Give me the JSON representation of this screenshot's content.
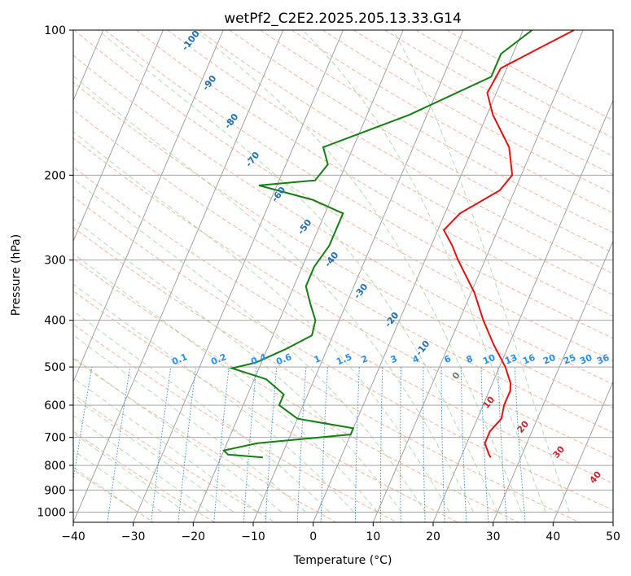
{
  "chart_data": {
    "type": "line",
    "title": "wetPf2_C2E2.2025.205.13.33.G14",
    "xlabel": "Temperature (°C)",
    "ylabel": "Pressure (hPa)",
    "xlim": [
      -40,
      50
    ],
    "ylim": [
      1050,
      100
    ],
    "y_scale": "log",
    "grid": true,
    "x_ticks": [
      -40,
      -30,
      -20,
      -10,
      0,
      10,
      20,
      30,
      40,
      50
    ],
    "y_ticks": [
      100,
      200,
      300,
      400,
      500,
      600,
      700,
      800,
      900,
      1000
    ],
    "skew_t": true,
    "colors": {
      "temperature": "#e8110f",
      "dewpoint": "#118011",
      "dry_adiabat_label": "#1f6fb4",
      "moist_adiabat_label": "#c8262c",
      "mixing_ratio_label": "#2a8fe6",
      "isotherm_grid": "#999999",
      "dry_adiabat": "#f5a182",
      "moist_adiabat": "#8fcf8f",
      "mixing_ratio": "#3f8fdf"
    },
    "series": [
      {
        "role": "temperature",
        "points": [
          [
            100,
            8.5
          ],
          [
            110,
            3.5
          ],
          [
            120,
            -1
          ],
          [
            135,
            -1.5
          ],
          [
            150,
            1
          ],
          [
            175,
            6
          ],
          [
            200,
            8.5
          ],
          [
            215,
            7.5
          ],
          [
            240,
            2.5
          ],
          [
            260,
            1
          ],
          [
            280,
            3.5
          ],
          [
            300,
            5.5
          ],
          [
            350,
            10.5
          ],
          [
            400,
            14
          ],
          [
            450,
            17.5
          ],
          [
            500,
            21
          ],
          [
            540,
            23
          ],
          [
            560,
            23.5
          ],
          [
            600,
            23.5
          ],
          [
            640,
            24
          ],
          [
            680,
            23
          ],
          [
            720,
            23
          ],
          [
            760,
            24.5
          ],
          [
            770,
            25
          ]
        ]
      },
      {
        "role": "dewpoint",
        "points": [
          [
            100,
            1.5
          ],
          [
            112,
            -2
          ],
          [
            125,
            -2
          ],
          [
            150,
            -13
          ],
          [
            175,
            -25
          ],
          [
            190,
            -23
          ],
          [
            205,
            -24
          ],
          [
            210,
            -33
          ],
          [
            225,
            -23
          ],
          [
            240,
            -17
          ],
          [
            280,
            -17
          ],
          [
            310,
            -18
          ],
          [
            340,
            -18
          ],
          [
            370,
            -16
          ],
          [
            400,
            -14
          ],
          [
            430,
            -13.5
          ],
          [
            460,
            -17
          ],
          [
            490,
            -21
          ],
          [
            503,
            -24.5
          ],
          [
            530,
            -18
          ],
          [
            570,
            -14
          ],
          [
            600,
            -14
          ],
          [
            640,
            -10
          ],
          [
            670,
            0
          ],
          [
            690,
            0
          ],
          [
            720,
            -15
          ],
          [
            745,
            -20
          ],
          [
            760,
            -19
          ],
          [
            770,
            -13
          ]
        ]
      }
    ],
    "dry_adiabat_labels": [
      "-100",
      "-90",
      "-80",
      "-70",
      "-60",
      "-50",
      "-40",
      "-30",
      "-20",
      "-10",
      "0"
    ],
    "moist_adiabat_labels": [
      "10",
      "20",
      "30",
      "40"
    ],
    "mixing_ratio_labels": [
      "0.1",
      "0.2",
      "0.4",
      "0.6",
      "1",
      "1.5",
      "2",
      "3",
      "4",
      "6",
      "8",
      "10",
      "13",
      "16",
      "20",
      "25",
      "30",
      "36"
    ]
  }
}
